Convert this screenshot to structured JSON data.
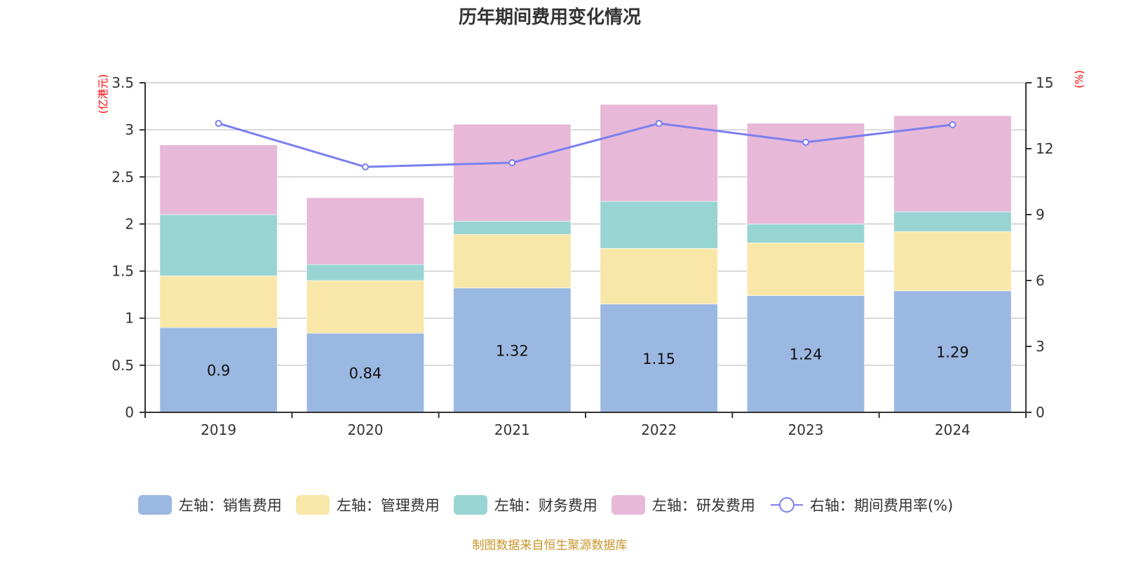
{
  "chart_data": {
    "type": "bar",
    "stacked": true,
    "title": "历年期间费用变化情况",
    "categories": [
      "2019",
      "2020",
      "2021",
      "2022",
      "2023",
      "2024"
    ],
    "left_axis": {
      "label": "(亿港元)",
      "ylim": [
        0,
        3.5
      ],
      "ticks": [
        "0",
        "0.5",
        "1",
        "1.5",
        "2",
        "2.5",
        "3",
        "3.5"
      ],
      "tick_values": [
        0,
        0.5,
        1,
        1.5,
        2,
        2.5,
        3,
        3.5
      ]
    },
    "right_axis": {
      "label": "(%)",
      "ylim": [
        0,
        15
      ],
      "ticks": [
        "0",
        "3",
        "6",
        "9",
        "12",
        "15"
      ],
      "tick_values": [
        0,
        3,
        6,
        9,
        12,
        15
      ]
    },
    "grid": true,
    "series": [
      {
        "name": "左轴：销售费用",
        "axis": "left",
        "type": "bar",
        "color": "#9bb8e2",
        "values": [
          0.9,
          0.84,
          1.32,
          1.15,
          1.24,
          1.29
        ],
        "labels": [
          "0.9",
          "0.84",
          "1.32",
          "1.15",
          "1.24",
          "1.29"
        ]
      },
      {
        "name": "左轴：管理费用",
        "axis": "left",
        "type": "bar",
        "color": "#f8e7a9",
        "values": [
          0.55,
          0.56,
          0.57,
          0.59,
          0.56,
          0.63
        ]
      },
      {
        "name": "左轴：财务费用",
        "axis": "left",
        "type": "bar",
        "color": "#98d4d4",
        "values": [
          0.65,
          0.17,
          0.14,
          0.5,
          0.2,
          0.21
        ]
      },
      {
        "name": "左轴：研发费用",
        "axis": "left",
        "type": "bar",
        "color": "#e7b8d8",
        "values": [
          0.74,
          0.71,
          1.03,
          1.03,
          1.07,
          1.02
        ]
      },
      {
        "name": "右轴：期间费用率(%)",
        "axis": "right",
        "type": "line",
        "color": "#7b7ff0",
        "values": [
          13.15,
          11.17,
          11.36,
          13.15,
          12.29,
          13.09
        ]
      }
    ],
    "legend_position": "bottom"
  },
  "source_note": "制图数据来自恒生聚源数据库"
}
